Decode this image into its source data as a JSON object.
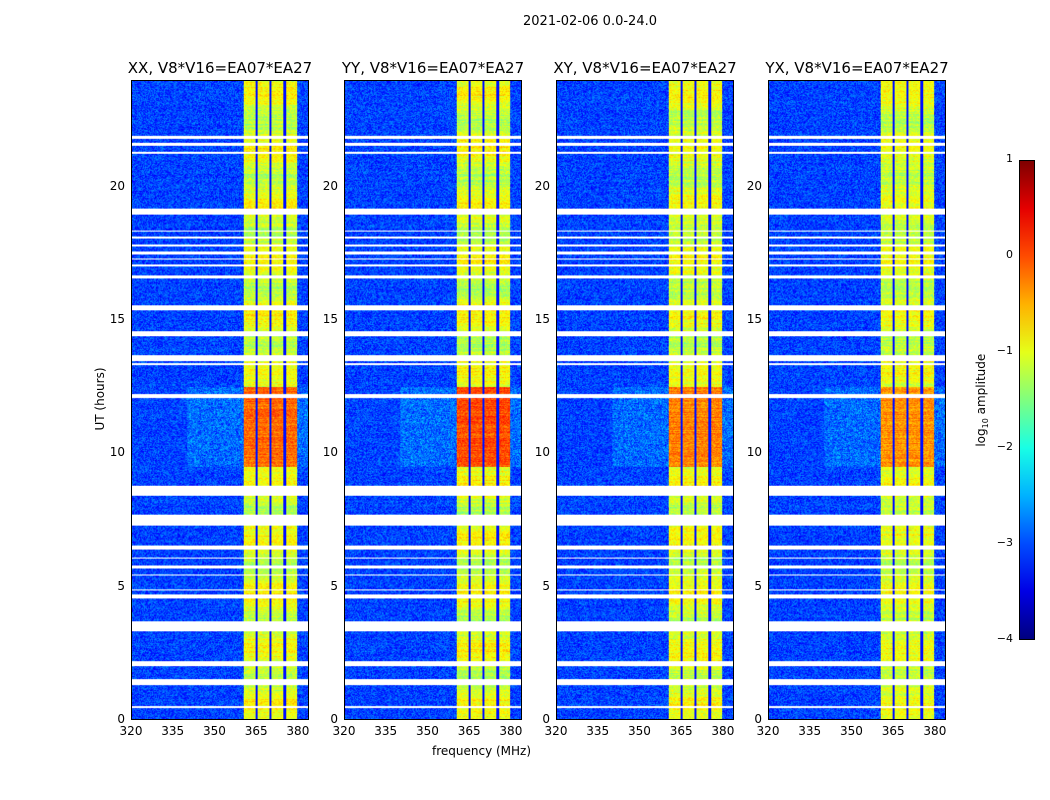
{
  "title": "2021-02-06 0.0-24.0",
  "chart_data": {
    "type": "heatmap",
    "colormap": "jet",
    "panels": [
      {
        "title": "XX, V8*V16=EA07*EA27",
        "peak_scale": 1.0
      },
      {
        "title": "YY, V8*V16=EA07*EA27",
        "peak_scale": 1.15
      },
      {
        "title": "XY, V8*V16=EA07*EA27",
        "peak_scale": 0.9
      },
      {
        "title": "YX, V8*V16=EA07*EA27",
        "peak_scale": 0.8
      }
    ],
    "xlabel": "frequency (MHz)",
    "ylabel": "UT (hours)",
    "xlim": [
      320,
      384
    ],
    "ylim": [
      0,
      24
    ],
    "xticks": [
      "320",
      "335",
      "350",
      "365",
      "380"
    ],
    "xtick_values": [
      320,
      335,
      350,
      365,
      380
    ],
    "yticks": [
      "0",
      "5",
      "10",
      "15",
      "20"
    ],
    "ytick_values": [
      0,
      5,
      10,
      15,
      20
    ],
    "bright_band_mhz": [
      360.5,
      380
    ],
    "subband_edges_mhz": [
      365.2,
      370.2,
      375.3
    ],
    "high_amplitude_hours": [
      9.5,
      12.5
    ],
    "flagged_hours": [
      [
        21.85,
        21.95
      ],
      [
        21.6,
        21.7
      ],
      [
        21.3,
        21.35
      ],
      [
        19.0,
        19.2
      ],
      [
        18.35,
        18.4
      ],
      [
        18.1,
        18.15
      ],
      [
        17.8,
        17.85
      ],
      [
        17.5,
        17.6
      ],
      [
        17.3,
        17.35
      ],
      [
        17.05,
        17.1
      ],
      [
        16.6,
        16.7
      ],
      [
        15.4,
        15.6
      ],
      [
        14.4,
        14.6
      ],
      [
        13.5,
        13.7
      ],
      [
        13.35,
        13.4
      ],
      [
        12.1,
        12.25
      ],
      [
        8.4,
        8.8
      ],
      [
        7.3,
        7.7
      ],
      [
        6.4,
        6.55
      ],
      [
        6.05,
        6.1
      ],
      [
        5.7,
        5.8
      ],
      [
        5.4,
        5.45
      ],
      [
        4.85,
        4.9
      ],
      [
        4.55,
        4.7
      ],
      [
        3.3,
        3.7
      ],
      [
        2.0,
        2.2
      ],
      [
        1.3,
        1.5
      ],
      [
        0.45,
        0.5
      ]
    ],
    "colorbar": {
      "label_main": "log",
      "label_sub": "10",
      "label_rest": " amplitude",
      "range": [
        -4,
        1
      ],
      "ticks": [
        "1",
        "0",
        "−1",
        "−2",
        "−3",
        "−4"
      ],
      "tick_values": [
        1,
        0,
        -1,
        -2,
        -3,
        -4
      ]
    }
  }
}
